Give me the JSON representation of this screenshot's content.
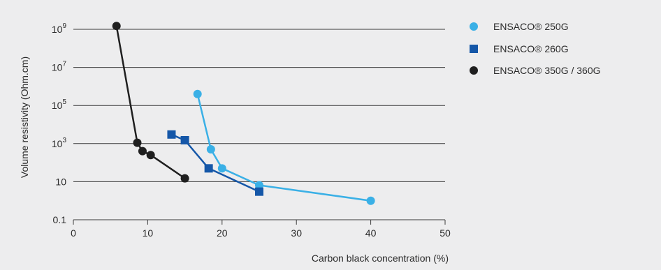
{
  "chart_data": {
    "type": "line",
    "xlabel": "Carbon black concentration (%)",
    "ylabel": "Volume resistivity (Ohm.cm)",
    "xlim": [
      0,
      50
    ],
    "x_ticks": [
      "0",
      "10",
      "20",
      "30",
      "40",
      "50"
    ],
    "y_scale": "log",
    "ylim": [
      0.1,
      1000000000
    ],
    "y_ticks": [
      {
        "value": 0.1,
        "base": "0.1",
        "exp": ""
      },
      {
        "value": 10,
        "base": "10",
        "exp": ""
      },
      {
        "value": 1000,
        "base": "10",
        "exp": "3"
      },
      {
        "value": 100000,
        "base": "10",
        "exp": "5"
      },
      {
        "value": 10000000,
        "base": "10",
        "exp": "7"
      },
      {
        "value": 1000000000,
        "base": "10",
        "exp": "9"
      }
    ],
    "grid": "horizontal",
    "legend_position": "right",
    "series": [
      {
        "name": "ENSACO® 250G",
        "marker": "circle",
        "color": "#3ab0e6",
        "x": [
          16.7,
          18.5,
          20.0,
          25.0,
          40.0
        ],
        "y": [
          400000,
          500,
          50,
          6.5,
          1.0
        ]
      },
      {
        "name": "ENSACO® 260G",
        "marker": "square",
        "color": "#1557a8",
        "x": [
          13.2,
          15.0,
          18.2,
          25.0
        ],
        "y": [
          3000,
          1500,
          50,
          3
        ]
      },
      {
        "name": "ENSACO® 350G / 360G",
        "marker": "circle",
        "color": "#1f1f1f",
        "x": [
          5.8,
          8.6,
          9.3,
          10.4,
          15.0
        ],
        "y": [
          1500000000,
          1100,
          400,
          250,
          15
        ]
      }
    ]
  }
}
